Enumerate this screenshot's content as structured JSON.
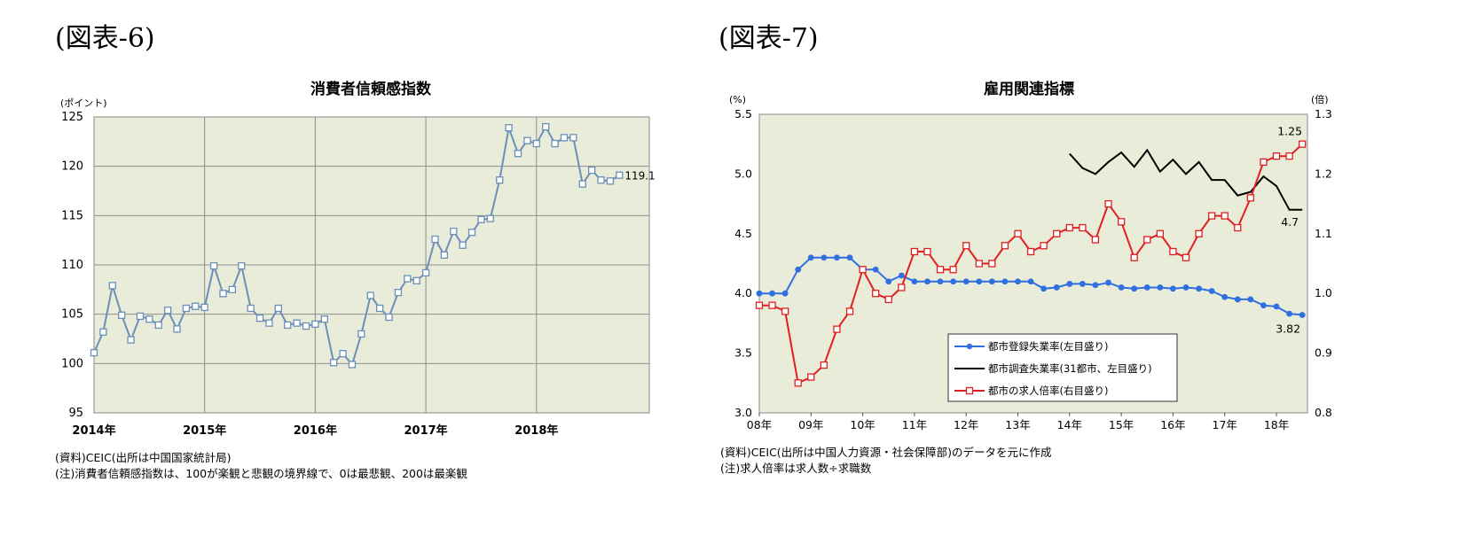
{
  "fig6": {
    "label": "(図表-6)",
    "source": "(資料)CEIC(出所は中国国家統計局)",
    "note": "(注)消費者信頼感指数は、100が楽観と悲観の境界線で、0は最悲観、200は最楽観"
  },
  "fig7": {
    "label": "(図表-7)",
    "source": "(資料)CEIC(出所は中国人力資源・社会保障部)のデータを元に作成",
    "note": "(注)求人倍率は求人数÷求職数"
  },
  "chart_data": [
    {
      "type": "line",
      "title": "消費者信頼感指数",
      "ylabel": "(ポイント)",
      "ylim": [
        95,
        125
      ],
      "yticks": [
        "95",
        "100",
        "105",
        "110",
        "115",
        "120",
        "125"
      ],
      "xticks": [
        "2014年",
        "2015年",
        "2016年",
        "2017年",
        "2018年"
      ],
      "grid": true,
      "colors": {
        "line": "#6a90b8",
        "plot_bg": "#e9ecd8"
      },
      "end_label": "119.1",
      "series": [
        {
          "x_start": "2014-01",
          "frequency": "monthly",
          "values": [
            101.1,
            103.2,
            107.9,
            104.9,
            102.4,
            104.8,
            104.5,
            103.9,
            105.4,
            103.5,
            105.6,
            105.8,
            105.7,
            109.9,
            107.1,
            107.5,
            109.9,
            105.6,
            104.6,
            104.1,
            105.6,
            103.9,
            104.1,
            103.8,
            104.0,
            104.5,
            100.1,
            101.0,
            99.9,
            103.0,
            106.9,
            105.6,
            104.7,
            107.2,
            108.6,
            108.4,
            109.2,
            112.6,
            111.0,
            113.4,
            112.0,
            113.3,
            114.6,
            114.7,
            118.6,
            123.9,
            121.3,
            122.6,
            122.3,
            124.0,
            122.3,
            122.9,
            122.9,
            118.2,
            119.6,
            118.6,
            118.5,
            119.1
          ]
        }
      ]
    },
    {
      "type": "line",
      "title": "雇用関連指標",
      "ylabel_left": "(%)",
      "ylabel_right": "(倍)",
      "ylim_left": [
        3.0,
        5.5
      ],
      "ylim_right": [
        0.8,
        1.3
      ],
      "yticks_left": [
        "3.0",
        "3.5",
        "4.0",
        "4.5",
        "5.0",
        "5.5"
      ],
      "yticks_right": [
        "0.8",
        "0.9",
        "1.0",
        "1.1",
        "1.2",
        "1.3"
      ],
      "xticks": [
        "08年",
        "09年",
        "10年",
        "11年",
        "12年",
        "13年",
        "14年",
        "15年",
        "16年",
        "17年",
        "18年"
      ],
      "legend_position": "bottom-left",
      "colors": {
        "plot_bg": "#e9ecd8"
      },
      "series": [
        {
          "name": "都市登録失業率(左目盛り)",
          "axis": "left",
          "color": "#2f6fe0",
          "marker": "circle",
          "x": [
            "2008Q1",
            "2008Q2",
            "2008Q3",
            "2008Q4",
            "2009Q1",
            "2009Q2",
            "2009Q3",
            "2009Q4",
            "2010Q1",
            "2010Q2",
            "2010Q3",
            "2010Q4",
            "2011Q1",
            "2011Q2",
            "2011Q3",
            "2011Q4",
            "2012Q1",
            "2012Q2",
            "2012Q3",
            "2012Q4",
            "2013Q1",
            "2013Q2",
            "2013Q3",
            "2013Q4",
            "2014Q1",
            "2014Q2",
            "2014Q3",
            "2014Q4",
            "2015Q1",
            "2015Q2",
            "2015Q3",
            "2015Q4",
            "2016Q1",
            "2016Q2",
            "2016Q3",
            "2016Q4",
            "2017Q1",
            "2017Q2",
            "2017Q3",
            "2017Q4",
            "2018Q1",
            "2018Q2",
            "2018Q3"
          ],
          "values": [
            4.0,
            4.0,
            4.0,
            4.2,
            4.3,
            4.3,
            4.3,
            4.3,
            4.2,
            4.2,
            4.1,
            4.15,
            4.1,
            4.1,
            4.1,
            4.1,
            4.1,
            4.1,
            4.1,
            4.1,
            4.1,
            4.1,
            4.04,
            4.05,
            4.08,
            4.08,
            4.07,
            4.09,
            4.05,
            4.04,
            4.05,
            4.05,
            4.04,
            4.05,
            4.04,
            4.02,
            3.97,
            3.95,
            3.95,
            3.9,
            3.89,
            3.83,
            3.82
          ],
          "end_label": "3.82"
        },
        {
          "name": "都市調査失業率(31都市、左目盛り)",
          "axis": "left",
          "color": "#000000",
          "marker": "none",
          "x": [
            "2014-01",
            "2014-04",
            "2014-07",
            "2014-10",
            "2015-01",
            "2015-04",
            "2015-07",
            "2015-10",
            "2016-01",
            "2016-04",
            "2016-07",
            "2016-10",
            "2017-01",
            "2017-04",
            "2017-07",
            "2017-10",
            "2018-01",
            "2018-04",
            "2018-07"
          ],
          "values": [
            5.17,
            5.05,
            5.0,
            5.1,
            5.18,
            5.06,
            5.2,
            5.02,
            5.12,
            5.0,
            5.1,
            4.95,
            4.95,
            4.82,
            4.85,
            4.98,
            4.9,
            4.7,
            4.7
          ],
          "end_label": "4.7"
        },
        {
          "name": "都市の求人倍率(右目盛り)",
          "axis": "right",
          "color": "#e02020",
          "marker": "square",
          "x": [
            "2008Q1",
            "2008Q2",
            "2008Q3",
            "2008Q4",
            "2009Q1",
            "2009Q2",
            "2009Q3",
            "2009Q4",
            "2010Q1",
            "2010Q2",
            "2010Q3",
            "2010Q4",
            "2011Q1",
            "2011Q2",
            "2011Q3",
            "2011Q4",
            "2012Q1",
            "2012Q2",
            "2012Q3",
            "2012Q4",
            "2013Q1",
            "2013Q2",
            "2013Q3",
            "2013Q4",
            "2014Q1",
            "2014Q2",
            "2014Q3",
            "2014Q4",
            "2015Q1",
            "2015Q2",
            "2015Q3",
            "2015Q4",
            "2016Q1",
            "2016Q2",
            "2016Q3",
            "2016Q4",
            "2017Q1",
            "2017Q2",
            "2017Q3",
            "2017Q4",
            "2018Q1",
            "2018Q2",
            "2018Q3"
          ],
          "values": [
            0.98,
            0.98,
            0.97,
            0.85,
            0.86,
            0.88,
            0.94,
            0.97,
            1.04,
            1.0,
            0.99,
            1.01,
            1.07,
            1.07,
            1.04,
            1.04,
            1.08,
            1.05,
            1.05,
            1.08,
            1.1,
            1.07,
            1.08,
            1.1,
            1.11,
            1.11,
            1.09,
            1.15,
            1.12,
            1.06,
            1.09,
            1.1,
            1.07,
            1.06,
            1.1,
            1.13,
            1.13,
            1.11,
            1.16,
            1.22,
            1.23,
            1.23,
            1.25
          ],
          "end_label": "1.25"
        }
      ]
    }
  ]
}
